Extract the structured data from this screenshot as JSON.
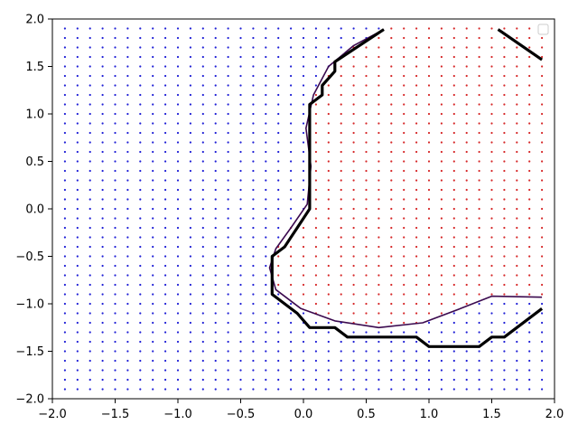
{
  "chart_data": {
    "type": "scatter",
    "title": "",
    "xlabel": "",
    "ylabel": "",
    "xlim": [
      -2.0,
      2.0
    ],
    "ylim": [
      -2.0,
      2.0
    ],
    "x_ticks": [
      -2.0,
      -1.5,
      -1.0,
      -0.5,
      0.0,
      0.5,
      1.0,
      1.5,
      2.0
    ],
    "y_ticks": [
      -2.0,
      -1.5,
      -1.0,
      -0.5,
      0.0,
      0.5,
      1.0,
      1.5,
      2.0
    ],
    "x_tick_labels": [
      "−2.0",
      "−1.5",
      "−1.0",
      "−0.5",
      "0.0",
      "0.5",
      "1.0",
      "1.5",
      "2.0"
    ],
    "y_tick_labels": [
      "−2.0",
      "−1.5",
      "−1.0",
      "−0.5",
      "0.0",
      "0.5",
      "1.0",
      "1.5",
      "2.0"
    ],
    "grid": false,
    "legend": {
      "placement": "top-right",
      "entries": []
    },
    "point_grid": {
      "x_start": -1.9,
      "x_end": 1.9,
      "x_step": 0.1,
      "y_start": -1.9,
      "y_end": 1.9,
      "y_step": 0.1,
      "class_colors": {
        "inside": "#d62728",
        "outside": "#1f1fd6"
      }
    },
    "decision_boundary": {
      "name": "",
      "color": "#000000",
      "segments": [
        [
          [
            0.64,
            1.89
          ],
          [
            0.25,
            1.55
          ],
          [
            0.25,
            1.45
          ],
          [
            0.15,
            1.3
          ],
          [
            0.15,
            1.2
          ],
          [
            0.05,
            1.1
          ],
          [
            0.05,
            0.0
          ],
          [
            0.0,
            -0.1
          ],
          [
            -0.05,
            -0.2
          ],
          [
            -0.1,
            -0.3
          ],
          [
            -0.15,
            -0.4
          ],
          [
            -0.25,
            -0.5
          ],
          [
            -0.25,
            -0.9
          ],
          [
            -0.05,
            -1.1
          ],
          [
            0.05,
            -1.25
          ],
          [
            0.25,
            -1.25
          ],
          [
            0.35,
            -1.35
          ],
          [
            0.9,
            -1.35
          ],
          [
            1.0,
            -1.45
          ],
          [
            1.4,
            -1.45
          ],
          [
            1.5,
            -1.35
          ],
          [
            1.6,
            -1.35
          ],
          [
            1.9,
            -1.05
          ]
        ],
        [
          [
            1.55,
            1.89
          ],
          [
            1.9,
            1.57
          ]
        ]
      ]
    },
    "true_boundary": {
      "name": "",
      "color": "#3b0a4f",
      "points": [
        [
          0.64,
          1.89
        ],
        [
          0.4,
          1.72
        ],
        [
          0.2,
          1.5
        ],
        [
          0.08,
          1.2
        ],
        [
          0.02,
          0.85
        ],
        [
          0.06,
          0.45
        ],
        [
          0.03,
          0.05
        ],
        [
          -0.1,
          -0.2
        ],
        [
          -0.22,
          -0.42
        ],
        [
          -0.27,
          -0.62
        ],
        [
          -0.22,
          -0.85
        ],
        [
          -0.02,
          -1.05
        ],
        [
          0.25,
          -1.18
        ],
        [
          0.6,
          -1.25
        ],
        [
          0.95,
          -1.2
        ],
        [
          1.25,
          -1.05
        ],
        [
          1.5,
          -0.92
        ],
        [
          1.9,
          -0.93
        ]
      ]
    }
  }
}
